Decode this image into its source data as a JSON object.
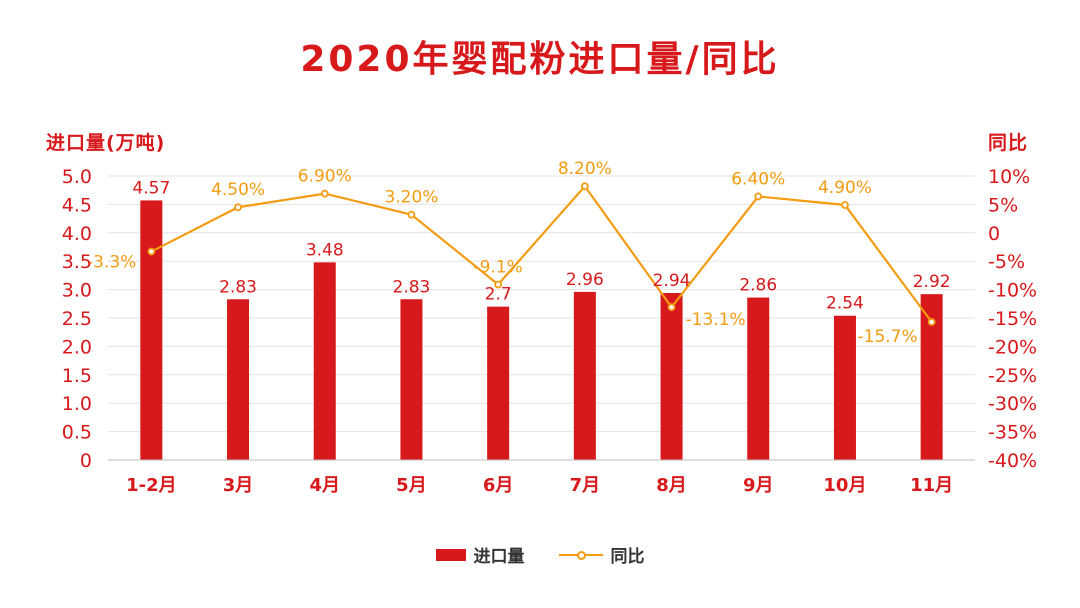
{
  "chart_data": {
    "type": "bar",
    "title": "2020年婴配粉进口量/同比",
    "ylabel": "进口量(万吨)",
    "y2label": "同比",
    "categories": [
      "1-2月",
      "3月",
      "4月",
      "5月",
      "6月",
      "7月",
      "8月",
      "9月",
      "10月",
      "11月"
    ],
    "series": [
      {
        "name": "进口量",
        "type": "bar",
        "axis": "left",
        "values": [
          4.57,
          2.83,
          3.48,
          2.83,
          2.7,
          2.96,
          2.94,
          2.86,
          2.54,
          2.92
        ],
        "labels": [
          "4.57",
          "2.83",
          "3.48",
          "2.83",
          "2.7",
          "2.96",
          "2.94",
          "2.86",
          "2.54",
          "2.92"
        ]
      },
      {
        "name": "同比",
        "type": "line",
        "axis": "right",
        "values": [
          -3.3,
          4.5,
          6.9,
          3.2,
          -9.1,
          8.2,
          -13.1,
          6.4,
          4.9,
          -15.7
        ],
        "labels": [
          "-3.3%",
          "4.50%",
          "6.90%",
          "3.20%",
          "-9.1%",
          "8.20%",
          "-13.1%",
          "6.40%",
          "4.90%",
          "-15.7%"
        ]
      }
    ],
    "ylim": [
      0,
      5.0
    ],
    "yticks": [
      "0",
      "0.5",
      "1.0",
      "1.5",
      "2.0",
      "2.5",
      "3.0",
      "3.5",
      "4.0",
      "4.5",
      "5.0"
    ],
    "y2lim": [
      -40,
      10
    ],
    "y2ticks": [
      "-40%",
      "-35%",
      "-30%",
      "-25%",
      "-20%",
      "-15%",
      "-10%",
      "-5%",
      "0",
      "5%",
      "10%"
    ],
    "grid": true,
    "legend_position": "bottom",
    "colors": {
      "bar": "#d7191c",
      "line": "#f39c12",
      "text": "#d7191c"
    }
  }
}
